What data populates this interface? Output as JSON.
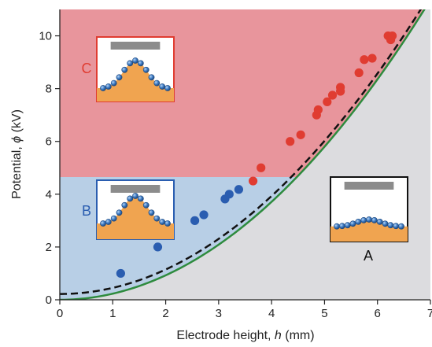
{
  "chart_data": {
    "type": "scatter",
    "xlabel": "Electrode height, h (mm)",
    "ylabel": "Potential, ϕ (kV)",
    "xlabel_parts": {
      "pre": "Electrode height, ",
      "var": "h",
      "post": " (mm)"
    },
    "ylabel_parts": {
      "pre": "Potential, ",
      "var": "ϕ",
      "post": " (kV)"
    },
    "xlim": [
      0,
      7
    ],
    "ylim": [
      0,
      11
    ],
    "xticks": [
      0,
      1,
      2,
      3,
      4,
      5,
      6,
      7
    ],
    "yticks": [
      0,
      2,
      4,
      6,
      8,
      10
    ],
    "grid": false,
    "regions": [
      {
        "label": "C",
        "color": "#e8959c",
        "y_from": 4.65,
        "y_to": 11
      },
      {
        "label": "B",
        "color": "#b8cfe6",
        "y_from": 0,
        "y_to": 4.65
      },
      {
        "label": "A",
        "color": "#dcdcdf"
      }
    ],
    "series": [
      {
        "color": "#2a5db0",
        "points": [
          [
            1.15,
            1.0
          ],
          [
            1.85,
            2.0
          ],
          [
            2.55,
            3.0
          ],
          [
            2.72,
            3.22
          ],
          [
            3.12,
            3.82
          ],
          [
            3.2,
            4.0
          ],
          [
            3.38,
            4.18
          ]
        ]
      },
      {
        "color": "#e03c31",
        "points": [
          [
            3.65,
            4.5
          ],
          [
            3.8,
            5.0
          ],
          [
            4.35,
            6.0
          ],
          [
            4.55,
            6.25
          ],
          [
            4.85,
            7.0
          ],
          [
            4.88,
            7.2
          ],
          [
            5.05,
            7.5
          ],
          [
            5.15,
            7.75
          ],
          [
            5.3,
            8.05
          ],
          [
            5.3,
            7.9
          ],
          [
            5.65,
            8.6
          ],
          [
            5.75,
            9.1
          ],
          [
            5.9,
            9.15
          ],
          [
            6.2,
            10.0
          ],
          [
            6.25,
            9.85
          ],
          [
            6.28,
            10.0
          ]
        ]
      }
    ],
    "curves": [
      {
        "style": "solid",
        "color": "#2e8b3e",
        "formula": "phi = a*h^2",
        "a": 0.232,
        "x0": 0
      },
      {
        "style": "dashed",
        "color": "#111111",
        "formula": "phi = c + b*h^2",
        "c": 0.22,
        "b": 0.232,
        "x0": 0
      }
    ],
    "insets": [
      {
        "label": "C",
        "state": "tall cone",
        "border": "#e03c31"
      },
      {
        "label": "B",
        "state": "cone",
        "border": "#2a5db0"
      },
      {
        "label": "A",
        "state": "flat",
        "border": "#111111"
      }
    ],
    "colors": {
      "electrode": "#8c8c8c",
      "liquid": "#f0a450",
      "bead": "#3d7bc4",
      "bead_stroke": "#1f4a80"
    }
  }
}
